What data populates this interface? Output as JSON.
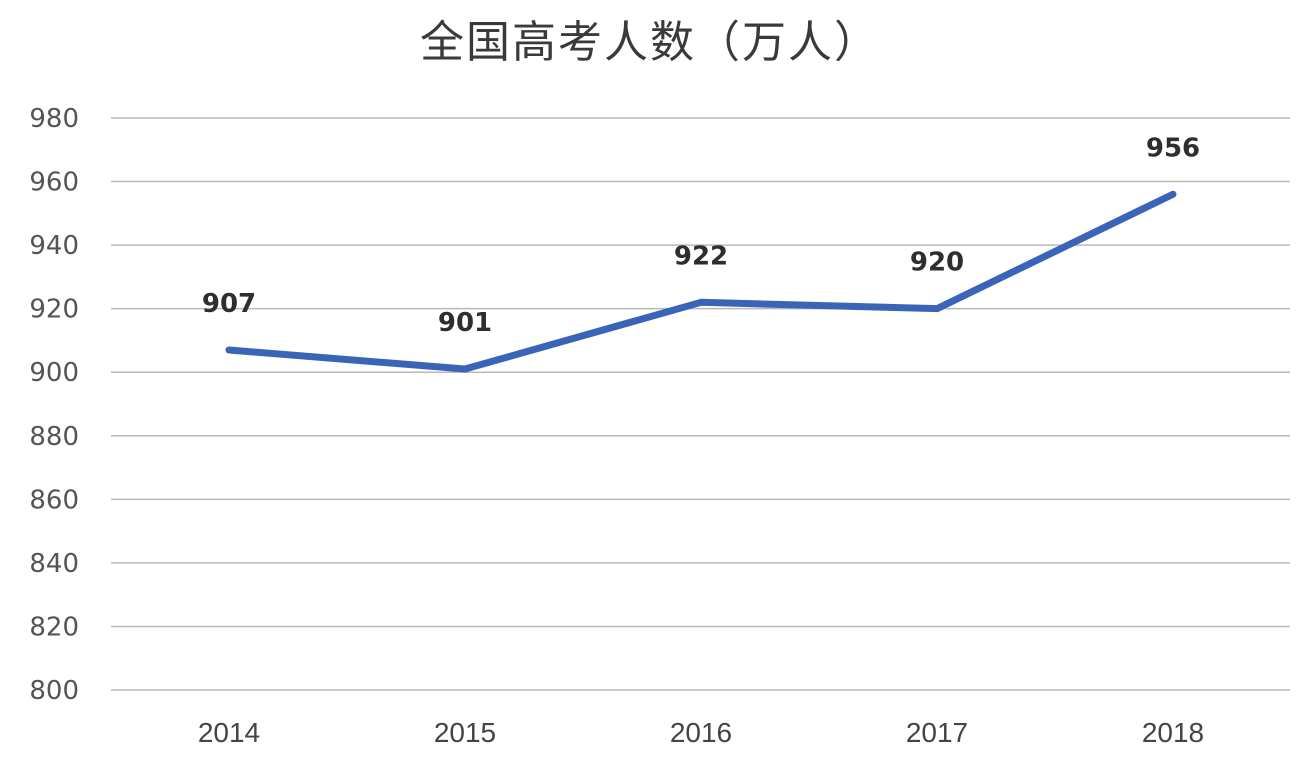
{
  "chart_data": {
    "type": "line",
    "title": "全国高考人数（万人）",
    "xlabel": "",
    "ylabel": "",
    "categories": [
      "2014",
      "2015",
      "2016",
      "2017",
      "2018"
    ],
    "series": [
      {
        "name": "全国高考人数（万人）",
        "values": [
          907,
          901,
          922,
          920,
          956
        ],
        "color": "#3a64b8"
      }
    ],
    "data_labels": [
      "907",
      "901",
      "922",
      "920",
      "956"
    ],
    "ylim": [
      800,
      980
    ],
    "yticks": [
      "980",
      "960",
      "940",
      "920",
      "900",
      "880",
      "860",
      "840",
      "820",
      "800"
    ],
    "grid": true,
    "legend": "none"
  },
  "colors": {
    "line": "#3a64b8",
    "grid": "#b9b9b9",
    "text": "#444444"
  }
}
